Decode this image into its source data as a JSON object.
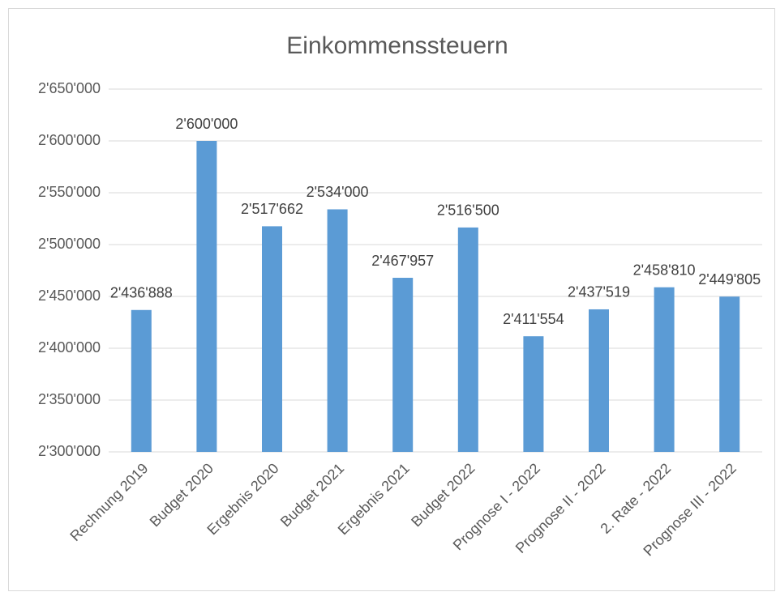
{
  "chart_data": {
    "type": "bar",
    "title": "Einkommenssteuern",
    "categories": [
      "Rechnung 2019",
      "Budget 2020",
      "Ergebnis 2020",
      "Budget 2021",
      "Ergebnis 2021",
      "Budget 2022",
      "Prognose I - 2022",
      "Prognose II - 2022",
      "2. Rate - 2022",
      "Prognose III - 2022"
    ],
    "values": [
      2436888,
      2600000,
      2517662,
      2534000,
      2467957,
      2516500,
      2411554,
      2437519,
      2458810,
      2449805
    ],
    "value_labels": [
      "2'436'888",
      "2'600'000",
      "2'517'662",
      "2'534'000",
      "2'467'957",
      "2'516'500",
      "2'411'554",
      "2'437'519",
      "2'458'810",
      "2'449'805"
    ],
    "color": "#5b9bd5",
    "ylim": [
      2300000,
      2650000
    ],
    "yticks": [
      {
        "value": 2300000,
        "label": "2'300'000"
      },
      {
        "value": 2350000,
        "label": "2'350'000"
      },
      {
        "value": 2400000,
        "label": "2'400'000"
      },
      {
        "value": 2450000,
        "label": "2'450'000"
      },
      {
        "value": 2500000,
        "label": "2'500'000"
      },
      {
        "value": 2550000,
        "label": "2'550'000"
      },
      {
        "value": 2600000,
        "label": "2'600'000"
      },
      {
        "value": 2650000,
        "label": "2'650'000"
      }
    ],
    "grid": true
  }
}
